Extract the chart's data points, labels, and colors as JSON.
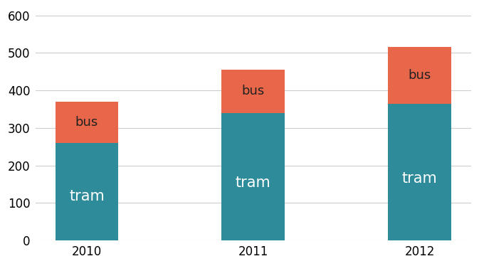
{
  "years": [
    "2010",
    "2011",
    "2012"
  ],
  "tram_values": [
    260,
    340,
    365
  ],
  "bus_values": [
    110,
    115,
    150
  ],
  "tram_color": "#2e8b9a",
  "bus_color": "#e8674a",
  "background_color": "#ffffff",
  "ylim": [
    0,
    620
  ],
  "yticks": [
    0,
    100,
    200,
    300,
    400,
    500,
    600
  ],
  "bar_width": 0.38,
  "tram_label": "tram",
  "bus_label": "bus",
  "tram_label_fontsize": 15,
  "bus_label_fontsize": 13,
  "tick_fontsize": 12,
  "grid_color": "#cccccc",
  "tram_text_color": "#ffffff",
  "bus_text_color": "#222222"
}
